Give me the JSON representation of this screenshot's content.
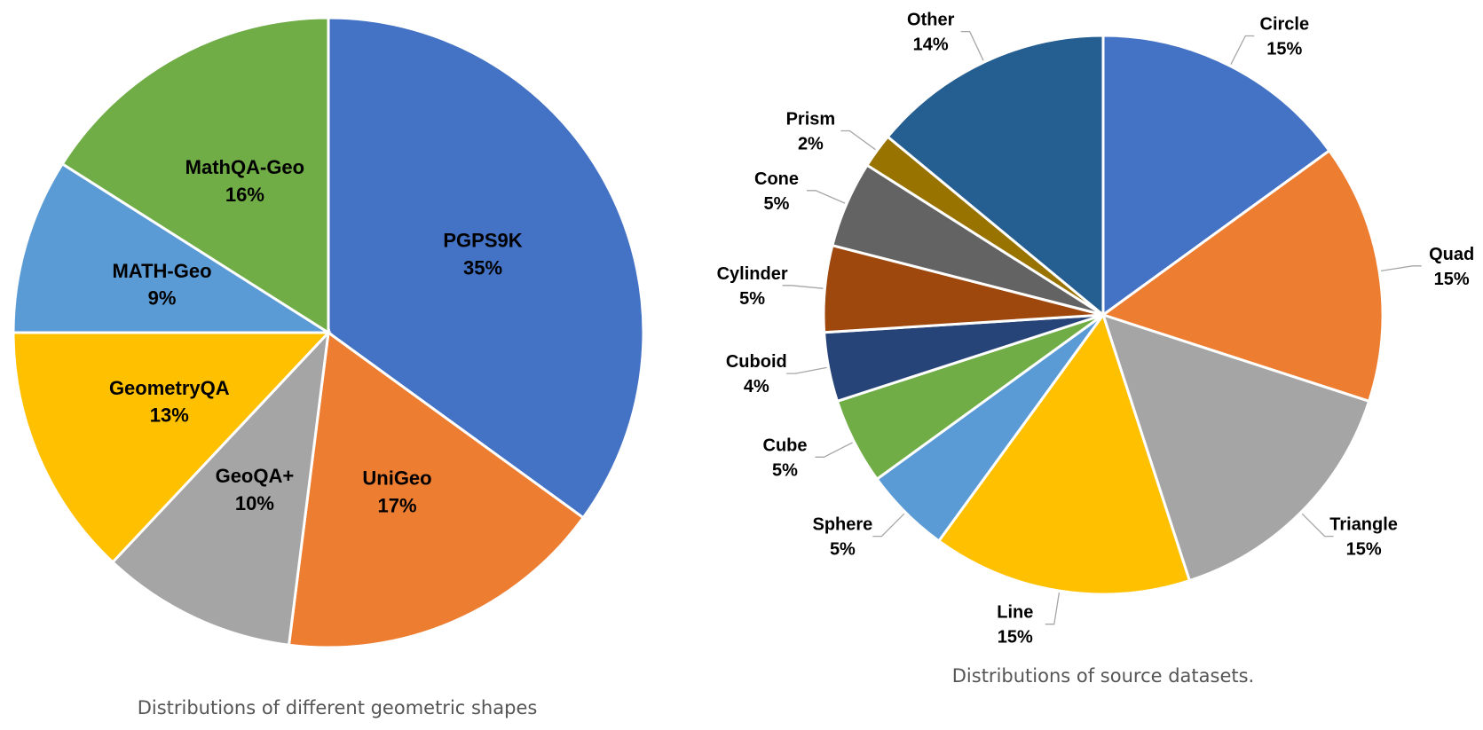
{
  "chart_data": [
    {
      "type": "pie",
      "caption": "Distributions of different geometric shapes",
      "slices": [
        {
          "label": "PGPS9K",
          "value": 35,
          "display": "35%",
          "color": "#4472C4"
        },
        {
          "label": "UniGeo",
          "value": 17,
          "display": "17%",
          "color": "#ED7D31"
        },
        {
          "label": "GeoQA+",
          "value": 10,
          "display": "10%",
          "color": "#A5A5A5"
        },
        {
          "label": "GeometryQA",
          "value": 13,
          "display": "13%",
          "color": "#FFC000"
        },
        {
          "label": "MATH-Geo",
          "value": 9,
          "display": "9%",
          "color": "#5B9BD5"
        },
        {
          "label": "MathQA-Geo",
          "value": 16,
          "display": "16%",
          "color": "#70AD47"
        }
      ]
    },
    {
      "type": "pie",
      "caption": "Distributions of source datasets.",
      "slices": [
        {
          "label": "Circle",
          "value": 15,
          "display": "15%",
          "color": "#4472C4"
        },
        {
          "label": "Quad",
          "value": 15,
          "display": "15%",
          "color": "#ED7D31"
        },
        {
          "label": "Triangle",
          "value": 15,
          "display": "15%",
          "color": "#A5A5A5"
        },
        {
          "label": "Line",
          "value": 15,
          "display": "15%",
          "color": "#FFC000"
        },
        {
          "label": "Sphere",
          "value": 5,
          "display": "5%",
          "color": "#5B9BD5"
        },
        {
          "label": "Cube",
          "value": 5,
          "display": "5%",
          "color": "#70AD47"
        },
        {
          "label": "Cuboid",
          "value": 4,
          "display": "4%",
          "color": "#264478"
        },
        {
          "label": "Cylinder",
          "value": 5,
          "display": "5%",
          "color": "#9E480E"
        },
        {
          "label": "Cone",
          "value": 5,
          "display": "5%",
          "color": "#636363"
        },
        {
          "label": "Prism",
          "value": 2,
          "display": "2%",
          "color": "#997300"
        },
        {
          "label": "Other",
          "value": 14,
          "display": "14%",
          "color": "#255E91"
        }
      ]
    }
  ]
}
